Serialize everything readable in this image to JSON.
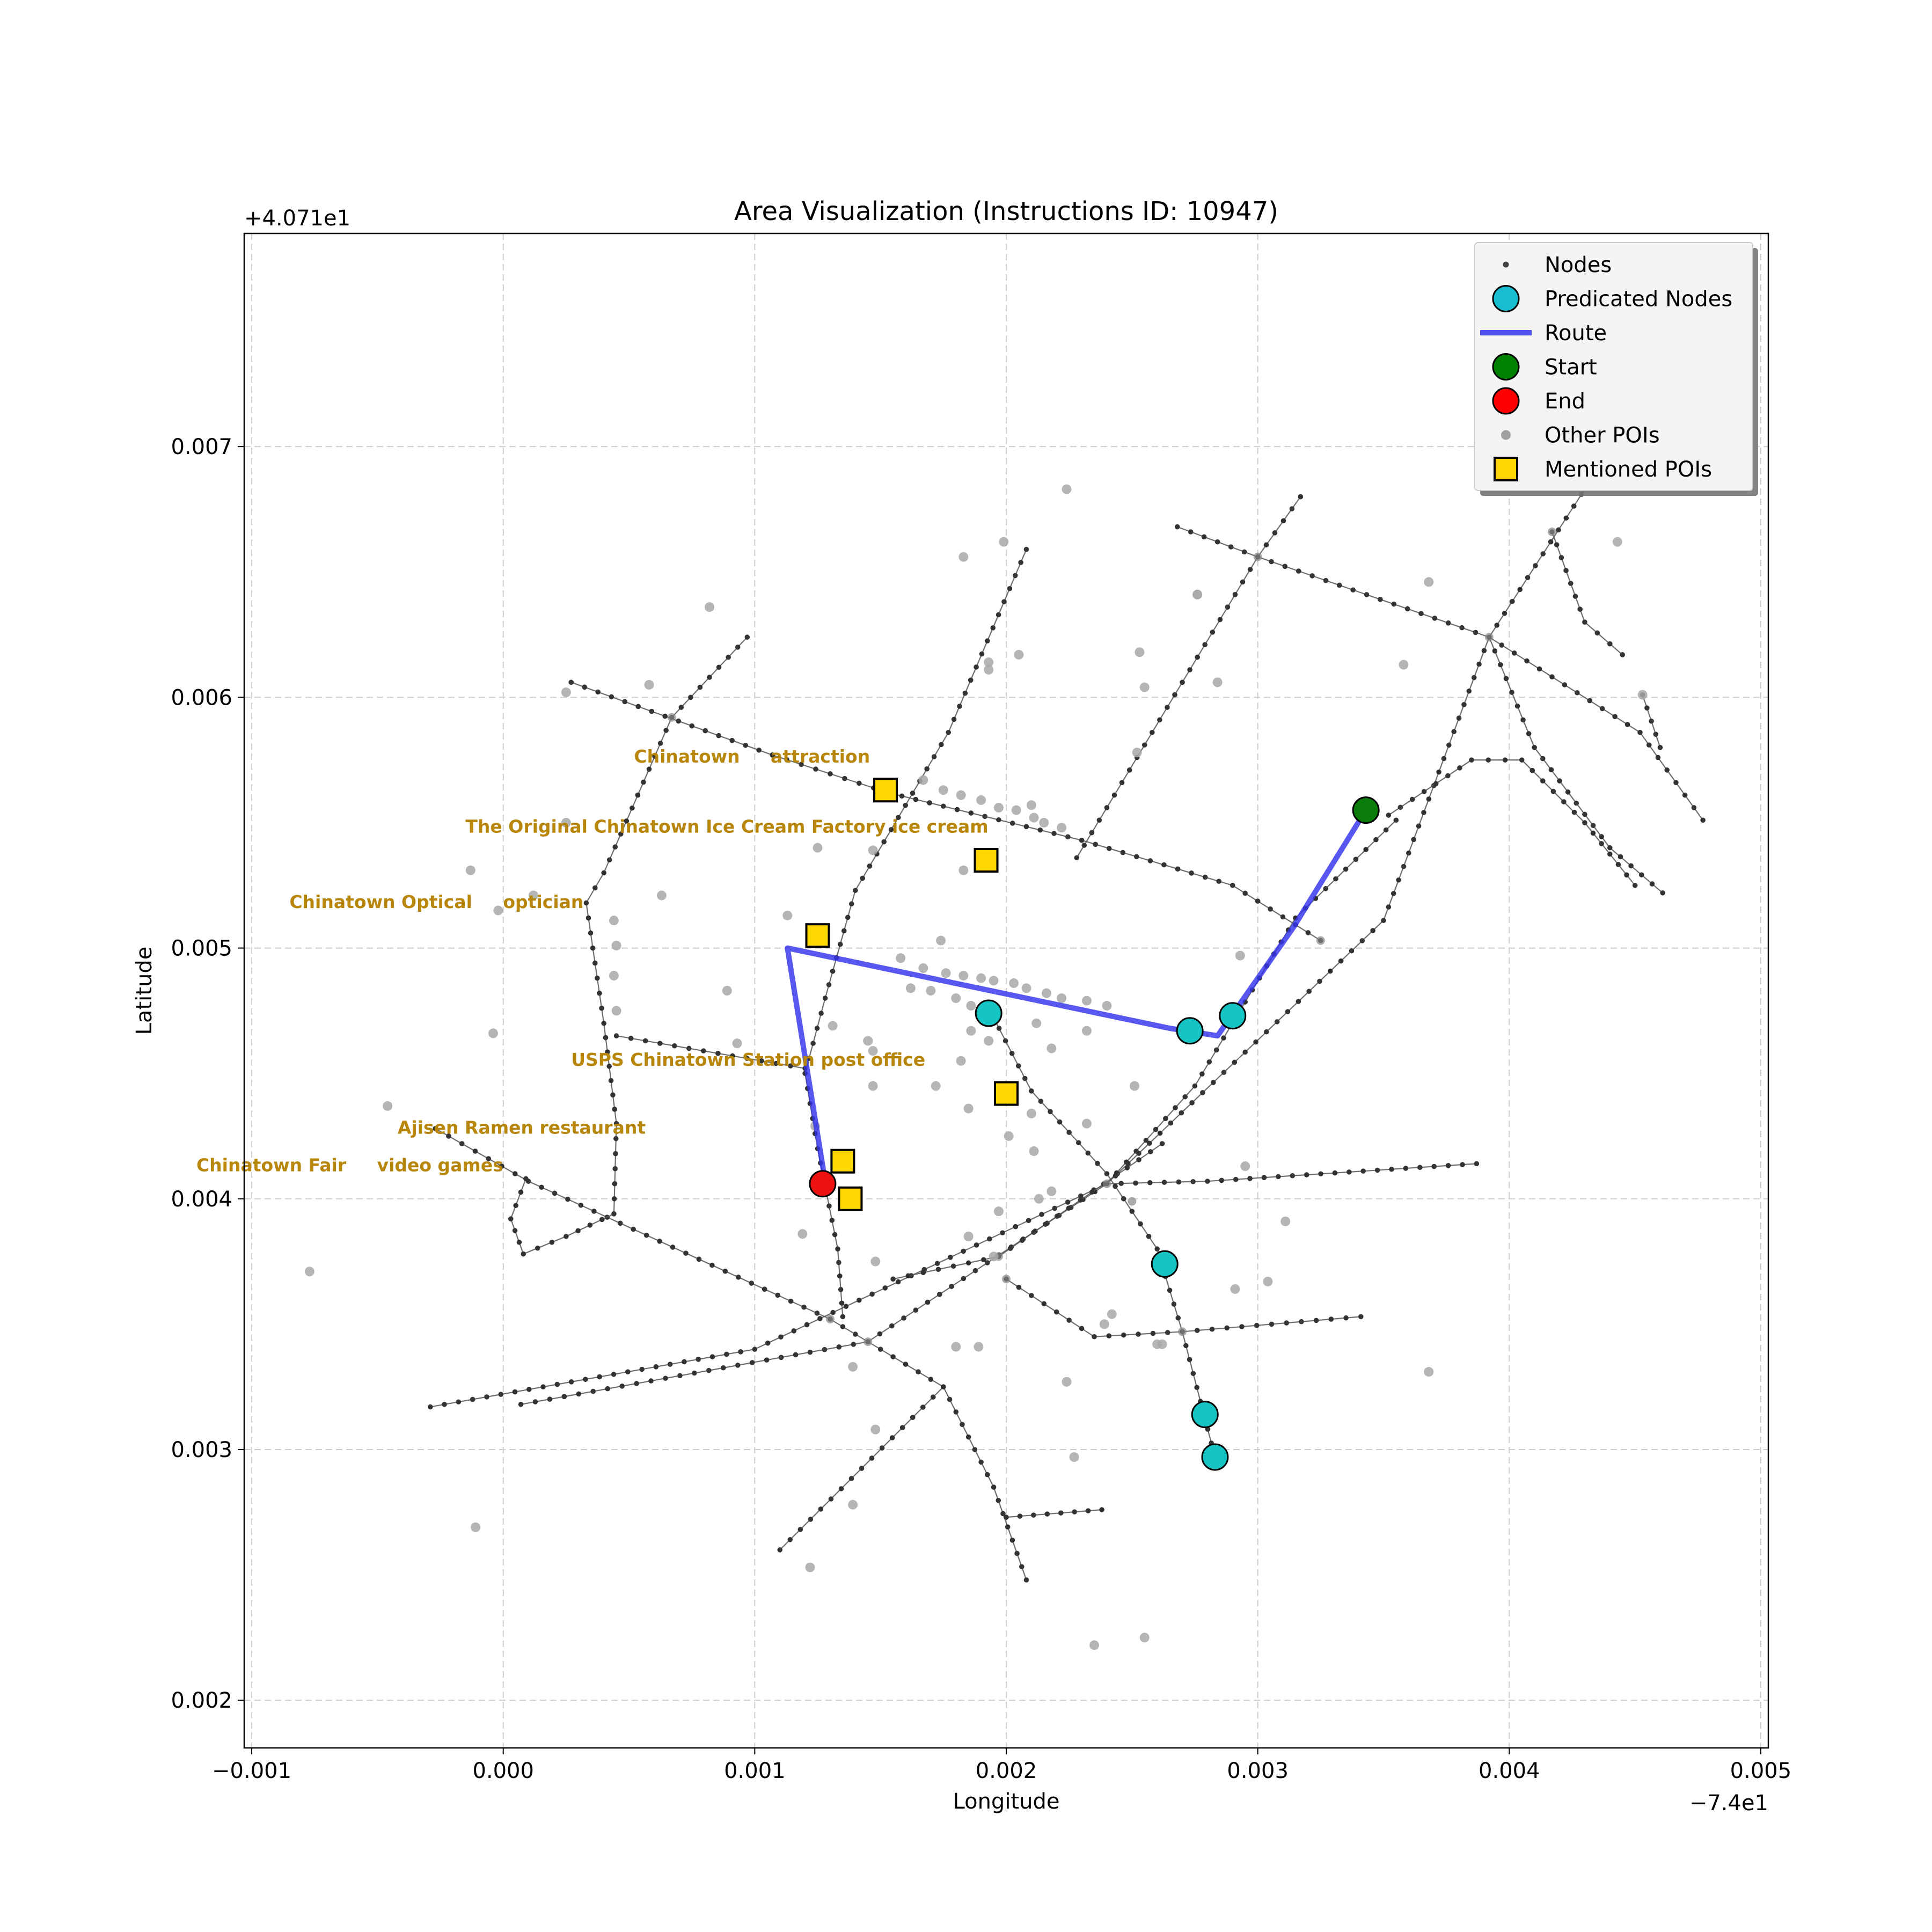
{
  "chart_data": {
    "type": "scatter",
    "title": "Area Visualization (Instructions ID: 10947)",
    "xlabel": "Longitude",
    "ylabel": "Latitude",
    "x_offset_label": "−7.4e1",
    "y_offset_label": "+4.071e1",
    "xlim": [
      -0.00103,
      0.00503
    ],
    "ylim": [
      0.00181,
      0.00785
    ],
    "x_ticks": [
      -0.001,
      0.0,
      0.001,
      0.002,
      0.003,
      0.004,
      0.005
    ],
    "x_tick_labels": [
      "−0.001",
      "0.000",
      "0.001",
      "0.002",
      "0.003",
      "0.004",
      "0.005"
    ],
    "y_ticks": [
      0.002,
      0.003,
      0.004,
      0.005,
      0.006,
      0.007
    ],
    "y_tick_labels": [
      "0.002",
      "0.003",
      "0.004",
      "0.005",
      "0.006",
      "0.007"
    ],
    "grid": true,
    "legend_position": "top-right",
    "legend": [
      {
        "label": "Nodes",
        "symbol": "small-dot",
        "color": "#404040"
      },
      {
        "label": "Predicated Nodes",
        "symbol": "circle",
        "color": "#17becf"
      },
      {
        "label": "Route",
        "symbol": "line",
        "color": "#3333ee"
      },
      {
        "label": "Start",
        "symbol": "circle",
        "color": "#008000"
      },
      {
        "label": "End",
        "symbol": "circle",
        "color": "#ff0000"
      },
      {
        "label": "Other POIs",
        "symbol": "dot",
        "color": "#a0a0a0"
      },
      {
        "label": "Mentioned POIs",
        "symbol": "square",
        "color": "#ffd700"
      }
    ],
    "colors": {
      "street": "#555555",
      "node": "#333333",
      "predicated": "#17c4c4",
      "route": "#3333ee",
      "start": "#0a7d0a",
      "end": "#ee1111",
      "other_poi": "#a8a8a8",
      "mentioned_poi": "#ffd700",
      "poi_label": "#b8860b"
    },
    "streets": [
      [
        [
          0.00027,
          0.00606
        ],
        [
          0.00107,
          0.00577
        ],
        [
          0.00153,
          0.00562
        ],
        [
          0.0023,
          0.00543
        ],
        [
          0.0029,
          0.00525
        ],
        [
          0.00325,
          0.00503
        ]
      ],
      [
        [
          0.00268,
          0.00668
        ],
        [
          0.003,
          0.00656
        ],
        [
          0.00392,
          0.00624
        ],
        [
          0.00452,
          0.00586
        ],
        [
          0.00477,
          0.00551
        ]
      ],
      [
        [
          -0.00027,
          0.00428
        ],
        [
          0.0001,
          0.00407
        ],
        [
          0.0013,
          0.00352
        ],
        [
          0.00175,
          0.00325
        ],
        [
          0.00195,
          0.00285
        ],
        [
          0.00208,
          0.00248
        ]
      ],
      [
        [
          0.00097,
          0.00624
        ],
        [
          0.00067,
          0.00592
        ],
        [
          0.0004,
          0.0053
        ],
        [
          0.00033,
          0.00518
        ],
        [
          0.0004,
          0.0047
        ],
        [
          0.00045,
          0.0043
        ],
        [
          0.00044,
          0.00394
        ],
        [
          0.00025,
          0.00385
        ],
        [
          8e-05,
          0.00378
        ],
        [
          3e-05,
          0.00392
        ],
        [
          9e-05,
          0.00408
        ]
      ],
      [
        [
          0.00208,
          0.00659
        ],
        [
          0.00177,
          0.00586
        ],
        [
          0.0014,
          0.00523
        ],
        [
          0.00128,
          0.0048
        ],
        [
          0.0012,
          0.0045
        ],
        [
          0.00125,
          0.0042
        ],
        [
          0.00133,
          0.0038
        ],
        [
          0.00135,
          0.00353
        ]
      ],
      [
        [
          0.00317,
          0.0068
        ],
        [
          0.003,
          0.00656
        ],
        [
          0.00228,
          0.00536
        ]
      ],
      [
        [
          -0.00029,
          0.00317
        ],
        [
          0.001,
          0.0034
        ],
        [
          0.0024,
          0.00406
        ],
        [
          0.0035,
          0.00511
        ],
        [
          0.00392,
          0.00624
        ],
        [
          0.00441,
          0.007
        ]
      ],
      [
        [
          7e-05,
          0.00318
        ],
        [
          0.00145,
          0.00343
        ],
        [
          0.0024,
          0.00406
        ],
        [
          0.00275,
          0.00445
        ],
        [
          0.00315,
          0.00512
        ],
        [
          0.00355,
          0.00551
        ]
      ],
      [
        [
          0.00045,
          0.00465
        ],
        [
          0.0012,
          0.00452
        ]
      ],
      [
        [
          0.0024,
          0.00406
        ],
        [
          0.0028,
          0.00407
        ],
        [
          0.00387,
          0.00414
        ]
      ],
      [
        [
          0.0011,
          0.0026
        ],
        [
          0.00175,
          0.00325
        ]
      ],
      [
        [
          0.00192,
          0.00478
        ],
        [
          0.0021,
          0.00443
        ],
        [
          0.0024,
          0.0041
        ],
        [
          0.0026,
          0.0038
        ],
        [
          0.0027,
          0.00347
        ],
        [
          0.00283,
          0.00297
        ]
      ],
      [
        [
          0.002,
          0.00368
        ],
        [
          0.00235,
          0.00345
        ],
        [
          0.0027,
          0.00347
        ],
        [
          0.00341,
          0.00353
        ]
      ],
      [
        [
          0.002,
          0.00273
        ],
        [
          0.00238,
          0.00276
        ]
      ],
      [
        [
          0.00155,
          0.00368
        ],
        [
          0.00197,
          0.00377
        ],
        [
          0.00262,
          0.00422
        ]
      ],
      [
        [
          0.00392,
          0.00624
        ],
        [
          0.0041,
          0.0058
        ],
        [
          0.0044,
          0.0054
        ],
        [
          0.00461,
          0.00522
        ]
      ],
      [
        [
          0.00352,
          0.00553
        ],
        [
          0.00385,
          0.00575
        ],
        [
          0.00405,
          0.00575
        ],
        [
          0.0043,
          0.0055
        ],
        [
          0.0045,
          0.00525
        ]
      ],
      [
        [
          0.00417,
          0.00666
        ],
        [
          0.0043,
          0.0063
        ],
        [
          0.00445,
          0.00617
        ]
      ],
      [
        [
          0.00453,
          0.00601
        ],
        [
          0.0046,
          0.0058
        ]
      ]
    ],
    "other_pois": [
      [
        0.00082,
        0.00636
      ],
      [
        0.00058,
        0.00605
      ],
      [
        0.00025,
        0.00602
      ],
      [
        0.00025,
        0.0055
      ],
      [
        -0.00013,
        0.00531
      ],
      [
        0.00012,
        0.00521
      ],
      [
        -2e-05,
        0.00515
      ],
      [
        0.00063,
        0.00521
      ],
      [
        0.00044,
        0.00511
      ],
      [
        0.00045,
        0.00501
      ],
      [
        0.00044,
        0.00489
      ],
      [
        0.00045,
        0.00475
      ],
      [
        -4e-05,
        0.00466
      ],
      [
        0.00089,
        0.00483
      ],
      [
        0.00093,
        0.00462
      ],
      [
        0.00113,
        0.00513
      ],
      [
        0.00125,
        0.0054
      ],
      [
        0.00147,
        0.00539
      ],
      [
        0.00183,
        0.00531
      ],
      [
        0.00174,
        0.00503
      ],
      [
        0.00183,
        0.00656
      ],
      [
        0.00199,
        0.00662
      ],
      [
        0.00205,
        0.00617
      ],
      [
        0.00193,
        0.00614
      ],
      [
        0.00193,
        0.00611
      ],
      [
        0.00224,
        0.00683
      ],
      [
        0.00253,
        0.00618
      ],
      [
        0.00255,
        0.00604
      ],
      [
        0.00276,
        0.00641
      ],
      [
        0.00276,
        0.00641
      ],
      [
        0.00284,
        0.00606
      ],
      [
        0.00252,
        0.00578
      ],
      [
        0.00368,
        0.00646
      ],
      [
        0.00358,
        0.00613
      ],
      [
        0.00443,
        0.00662
      ],
      [
        0.00453,
        0.00601
      ],
      [
        0.00167,
        0.00567
      ],
      [
        0.00175,
        0.00563
      ],
      [
        0.00182,
        0.00561
      ],
      [
        0.0019,
        0.00559
      ],
      [
        0.00197,
        0.00556
      ],
      [
        0.00204,
        0.00555
      ],
      [
        0.0021,
        0.00557
      ],
      [
        0.00211,
        0.00552
      ],
      [
        0.00215,
        0.0055
      ],
      [
        0.00222,
        0.00548
      ],
      [
        0.00158,
        0.00496
      ],
      [
        0.00167,
        0.00492
      ],
      [
        0.00176,
        0.0049
      ],
      [
        0.00183,
        0.00489
      ],
      [
        0.0019,
        0.00488
      ],
      [
        0.00195,
        0.00487
      ],
      [
        0.00203,
        0.00486
      ],
      [
        0.00208,
        0.00484
      ],
      [
        0.00216,
        0.00482
      ],
      [
        0.00222,
        0.0048
      ],
      [
        0.00232,
        0.00479
      ],
      [
        0.0024,
        0.00477
      ],
      [
        0.00162,
        0.00484
      ],
      [
        0.0017,
        0.00483
      ],
      [
        0.0018,
        0.0048
      ],
      [
        0.00186,
        0.00477
      ],
      [
        0.00192,
        0.00476
      ],
      [
        0.00196,
        0.00474
      ],
      [
        0.00212,
        0.0047
      ],
      [
        0.00232,
        0.00467
      ],
      [
        0.00186,
        0.00467
      ],
      [
        0.00193,
        0.00463
      ],
      [
        0.00218,
        0.0046
      ],
      [
        0.00145,
        0.00463
      ],
      [
        0.00147,
        0.00459
      ],
      [
        0.00131,
        0.00469
      ],
      [
        0.00172,
        0.00445
      ],
      [
        0.00182,
        0.00455
      ],
      [
        0.00147,
        0.00445
      ],
      [
        0.00185,
        0.00436
      ],
      [
        0.0021,
        0.00434
      ],
      [
        0.00201,
        0.00425
      ],
      [
        0.00211,
        0.00419
      ],
      [
        0.00232,
        0.0043
      ],
      [
        0.00213,
        0.004
      ],
      [
        0.00218,
        0.00403
      ],
      [
        0.00197,
        0.00395
      ],
      [
        0.00185,
        0.00385
      ],
      [
        0.00119,
        0.00386
      ],
      [
        0.00148,
        0.00375
      ],
      [
        0.00124,
        0.00429
      ],
      [
        0.00195,
        0.00377
      ],
      [
        0.00239,
        0.0035
      ],
      [
        0.00242,
        0.00354
      ],
      [
        0.0026,
        0.00342
      ],
      [
        0.00262,
        0.00342
      ],
      [
        0.00189,
        0.00341
      ],
      [
        0.0018,
        0.00341
      ],
      [
        0.00251,
        0.00445
      ],
      [
        0.00293,
        0.00497
      ],
      [
        0.00295,
        0.00413
      ],
      [
        0.00311,
        0.00391
      ],
      [
        0.00291,
        0.00364
      ],
      [
        0.00304,
        0.00367
      ],
      [
        0.00368,
        0.00331
      ],
      [
        0.00139,
        0.00333
      ],
      [
        0.00148,
        0.00308
      ],
      [
        0.00139,
        0.00278
      ],
      [
        0.00122,
        0.00253
      ],
      [
        0.00227,
        0.00297
      ],
      [
        0.00224,
        0.00327
      ],
      [
        0.00235,
        0.00222
      ],
      [
        0.00255,
        0.00225
      ],
      [
        -0.00077,
        0.00371
      ],
      [
        -0.00046,
        0.00437
      ],
      [
        -0.00011,
        0.00269
      ]
    ],
    "street_nodes": [
      [
        0.00392,
        0.00624
      ],
      [
        0.003,
        0.00656
      ],
      [
        0.0024,
        0.00406
      ],
      [
        0.0025,
        0.00399
      ],
      [
        0.0013,
        0.00352
      ],
      [
        0.00067,
        0.00592
      ],
      [
        0.002,
        0.00368
      ],
      [
        0.00197,
        0.00377
      ],
      [
        0.0027,
        0.00347
      ],
      [
        0.00417,
        0.00666
      ],
      [
        0.00153,
        0.00562
      ],
      [
        0.00325,
        0.00503
      ],
      [
        0.00145,
        0.00343
      ]
    ],
    "route": [
      [
        0.00343,
        0.00555
      ],
      [
        0.00314,
        0.00508
      ],
      [
        0.00284,
        0.00465
      ],
      [
        0.00265,
        0.00468
      ],
      [
        0.00113,
        0.005
      ],
      [
        0.00128,
        0.00407
      ]
    ],
    "start": [
      0.00343,
      0.00555
    ],
    "end": [
      0.00127,
      0.00406
    ],
    "predicated_nodes": [
      [
        0.00193,
        0.00474
      ],
      [
        0.00273,
        0.00467
      ],
      [
        0.0029,
        0.00473
      ],
      [
        0.00263,
        0.00374
      ],
      [
        0.00279,
        0.00314
      ],
      [
        0.00283,
        0.00297
      ]
    ],
    "mentioned_pois": [
      {
        "x": 0.00152,
        "y": 0.00563,
        "label": "Chinatown     attraction",
        "label_x": 0.00052,
        "label_y": 0.00574
      },
      {
        "x": 0.00192,
        "y": 0.00535,
        "label": "The Original Chinatown Ice Cream Factory ice cream",
        "label_x": -0.00015,
        "label_y": 0.00546
      },
      {
        "x": 0.00125,
        "y": 0.00505,
        "label": "Chinatown Optical     optician",
        "label_x": -0.00085,
        "label_y": 0.00516
      },
      {
        "x": 0.002,
        "y": 0.00442,
        "label": "USPS Chinatown Station post office",
        "label_x": 0.00027,
        "label_y": 0.00453
      },
      {
        "x": 0.00135,
        "y": 0.00415,
        "label": "Ajisen Ramen restaurant",
        "label_x": -0.00042,
        "label_y": 0.00426
      },
      {
        "x": 0.00138,
        "y": 0.004,
        "label": "Chinatown Fair     video games",
        "label_x": -0.00122,
        "label_y": 0.00411
      }
    ]
  }
}
